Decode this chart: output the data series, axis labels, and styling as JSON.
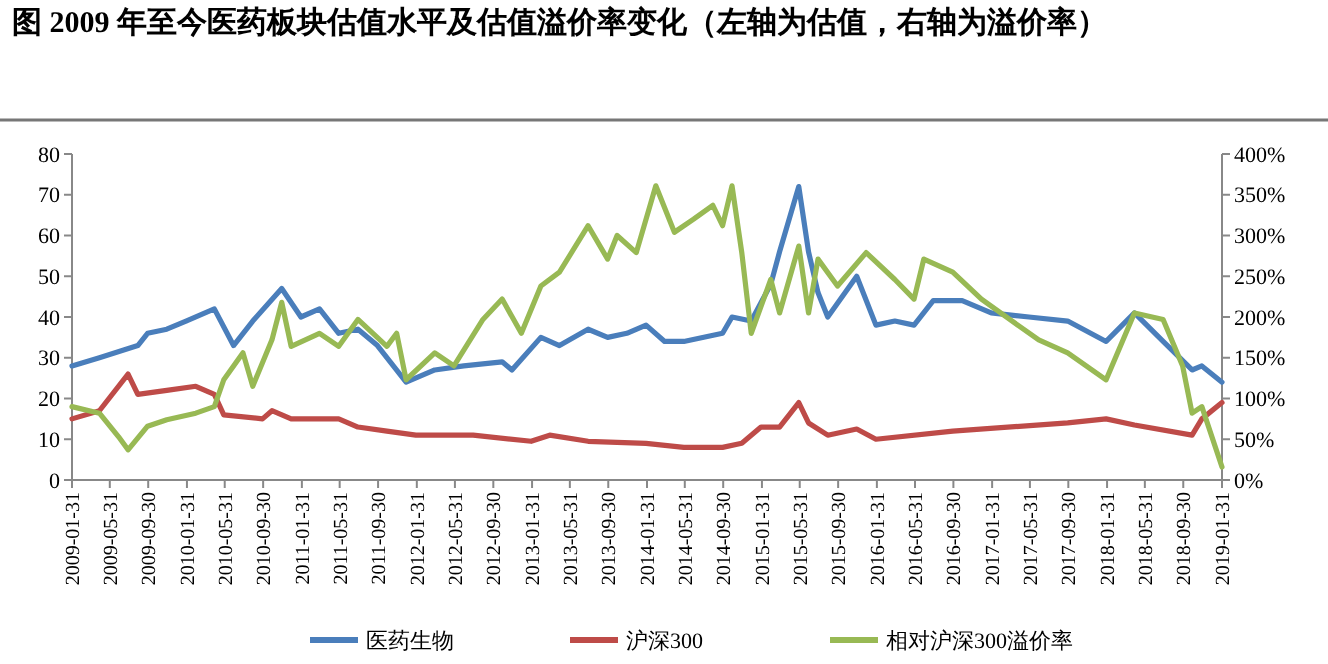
{
  "chart_data": {
    "type": "line",
    "title": "图      2009 年至今医药板块估值水平及估值溢价率变化（左轴为估值，右轴为溢价率）",
    "xlim": [
      "2009-01-31",
      "2019-01-31"
    ],
    "xticks": [
      "2009-01-31",
      "2009-05-31",
      "2009-09-30",
      "2010-01-31",
      "2010-05-31",
      "2010-09-30",
      "2011-01-31",
      "2011-05-31",
      "2011-09-30",
      "2012-01-31",
      "2012-05-31",
      "2012-09-30",
      "2013-01-31",
      "2013-05-31",
      "2013-09-30",
      "2014-01-31",
      "2014-05-31",
      "2014-09-30",
      "2015-01-31",
      "2015-05-31",
      "2015-09-30",
      "2016-01-31",
      "2016-05-31",
      "2016-09-30",
      "2017-01-31",
      "2017-05-31",
      "2017-09-30",
      "2018-01-31",
      "2018-05-31",
      "2018-09-30",
      "2019-01-31"
    ],
    "ylim": [
      0,
      80
    ],
    "yticks": [
      0,
      10,
      20,
      30,
      40,
      50,
      60,
      70,
      80
    ],
    "y2lim": [
      0,
      400
    ],
    "y2ticks": [
      {
        "value": 0,
        "label": "0%"
      },
      {
        "value": 50,
        "label": "50%"
      },
      {
        "value": 100,
        "label": "100%"
      },
      {
        "value": 150,
        "label": "150%"
      },
      {
        "value": 200,
        "label": "200%"
      },
      {
        "value": 250,
        "label": "250%"
      },
      {
        "value": 300,
        "label": "300%"
      },
      {
        "value": 350,
        "label": "350%"
      },
      {
        "value": 400,
        "label": "400%"
      }
    ],
    "grid": false,
    "legend": "bottom",
    "line_style": "solid",
    "marker": "none",
    "series": [
      {
        "name": "医药生物",
        "color": "#4a7ebb",
        "x": [
          "2009-01-31",
          "2009-04-28",
          "2009-08-28",
          "2009-09-28",
          "2009-11-28",
          "2010-01-28",
          "2010-04-28",
          "2010-06-28",
          "2010-08-28",
          "2010-11-28",
          "2011-01-28",
          "2011-03-28",
          "2011-05-28",
          "2011-07-28",
          "2011-09-28",
          "2011-12-28",
          "2012-03-28",
          "2012-06-28",
          "2012-10-28",
          "2012-11-28",
          "2013-02-28",
          "2013-04-28",
          "2013-07-28",
          "2013-09-28",
          "2013-11-28",
          "2014-01-28",
          "2014-03-28",
          "2014-05-28",
          "2014-09-28",
          "2014-10-28",
          "2014-12-28",
          "2015-02-28",
          "2015-03-28",
          "2015-05-28",
          "2015-06-28",
          "2015-07-28",
          "2015-08-28",
          "2015-11-28",
          "2016-01-28",
          "2016-03-28",
          "2016-05-28",
          "2016-07-28",
          "2016-10-28",
          "2017-01-28",
          "2017-05-28",
          "2017-09-28",
          "2018-01-28",
          "2018-04-28",
          "2018-07-28",
          "2018-10-28",
          "2018-11-28",
          "2019-01-31"
        ],
        "values": [
          28,
          30,
          33,
          36,
          37,
          39,
          42,
          33,
          39,
          47,
          40,
          42,
          36,
          37,
          33,
          24,
          27,
          28,
          29,
          27,
          35,
          33,
          37,
          35,
          36,
          38,
          34,
          34,
          36,
          40,
          39,
          48,
          56,
          72,
          56,
          46,
          40,
          50,
          38,
          39,
          38,
          44,
          44,
          41,
          40,
          39,
          34,
          41,
          34,
          27,
          28,
          24
        ]
      },
      {
        "name": "沪深300",
        "color": "#be4b48",
        "x": [
          "2009-01-31",
          "2009-04-28",
          "2009-07-28",
          "2009-08-28",
          "2009-11-28",
          "2010-02-28",
          "2010-04-28",
          "2010-05-28",
          "2010-09-28",
          "2010-10-28",
          "2010-12-28",
          "2011-05-28",
          "2011-07-28",
          "2011-10-28",
          "2012-01-28",
          "2012-07-28",
          "2013-01-28",
          "2013-03-28",
          "2013-07-28",
          "2014-01-28",
          "2014-05-28",
          "2014-09-28",
          "2014-11-28",
          "2015-01-28",
          "2015-03-28",
          "2015-05-28",
          "2015-06-28",
          "2015-08-28",
          "2015-11-28",
          "2016-01-28",
          "2016-09-28",
          "2017-09-28",
          "2018-01-28",
          "2018-04-28",
          "2018-10-28",
          "2018-11-28",
          "2019-01-31"
        ],
        "values": [
          15,
          17,
          26,
          21,
          22,
          23,
          21,
          16,
          15,
          17,
          15,
          15,
          13,
          12,
          11,
          11,
          9.5,
          11,
          9.5,
          9,
          8,
          8,
          9,
          13,
          13,
          19,
          14,
          11,
          12.5,
          10,
          12,
          14,
          15,
          13.5,
          11,
          15,
          19
        ]
      },
      {
        "name": "相对沪深300溢价率",
        "color": "#98b954",
        "axis": "y2",
        "x": [
          "2009-01-31",
          "2009-04-28",
          "2009-06-28",
          "2009-07-28",
          "2009-09-28",
          "2009-11-28",
          "2010-02-28",
          "2010-04-28",
          "2010-05-28",
          "2010-07-28",
          "2010-08-28",
          "2010-10-28",
          "2010-11-28",
          "2010-12-28",
          "2011-03-28",
          "2011-05-28",
          "2011-07-28",
          "2011-10-28",
          "2011-11-28",
          "2011-12-28",
          "2012-03-28",
          "2012-05-28",
          "2012-08-28",
          "2012-10-28",
          "2012-12-28",
          "2013-02-28",
          "2013-04-28",
          "2013-07-28",
          "2013-09-28",
          "2013-10-28",
          "2013-12-28",
          "2014-02-28",
          "2014-04-28",
          "2014-06-28",
          "2014-08-28",
          "2014-09-28",
          "2014-10-28",
          "2014-11-28",
          "2014-12-28",
          "2015-02-28",
          "2015-03-28",
          "2015-05-28",
          "2015-06-28",
          "2015-07-28",
          "2015-09-28",
          "2015-12-28",
          "2016-03-28",
          "2016-05-28",
          "2016-06-28",
          "2016-09-28",
          "2016-12-28",
          "2017-03-28",
          "2017-06-28",
          "2017-09-28",
          "2018-01-28",
          "2018-04-28",
          "2018-07-28",
          "2018-09-28",
          "2018-10-28",
          "2018-11-28",
          "2019-01-31"
        ],
        "values": [
          90,
          82,
          53,
          37,
          66,
          74,
          82,
          90,
          123,
          156,
          115,
          172,
          218,
          164,
          180,
          164,
          197,
          164,
          180,
          123,
          156,
          140,
          197,
          222,
          180,
          238,
          255,
          312,
          271,
          300,
          279,
          361,
          304,
          320,
          337,
          312,
          361,
          279,
          180,
          246,
          205,
          287,
          205,
          271,
          238,
          279,
          246,
          222,
          271,
          255,
          222,
          197,
          172,
          156,
          123,
          205,
          197,
          140,
          82,
          90,
          16
        ]
      }
    ]
  }
}
